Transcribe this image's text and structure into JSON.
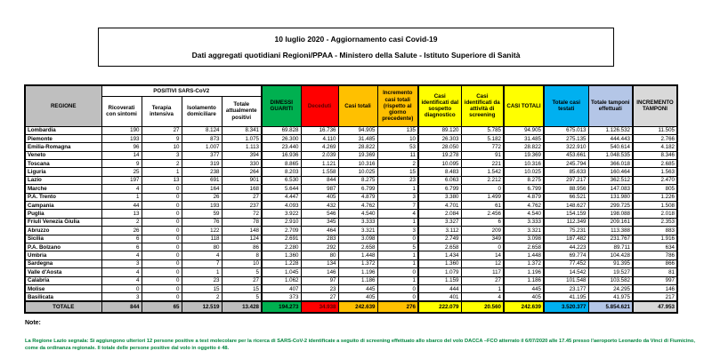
{
  "header": {
    "line1": "10 luglio 2020 - Aggiornamento casi Covid-19",
    "line2": "Dati aggregati quotidiani Regioni/PPAA - Ministero della Salute - Istituto Superiore di Sanità"
  },
  "table": {
    "region_header": "REGIONE",
    "positivi_group": "POSITIVI SARS-CoV2",
    "columns": [
      "Ricoverati con sintomi",
      "Terapia intensiva",
      "Isolamento domiciliare",
      "Totale attualmente positivi",
      "DIMESSI GUARITI",
      "Deceduti",
      "Casi totali",
      "Incremento casi totali (rispetto al giorno precedente)",
      "Casi identificati dal sospetto diagnostico",
      "Casi identificati da attività di screening",
      "CASI TOTALI",
      "Totale casi testati",
      "Totale tamponi effettuati",
      "INCREMENTO TAMPONI"
    ],
    "rows": [
      {
        "region": "Lombardia",
        "values": [
          "190",
          "27",
          "8.124",
          "8.341",
          "69.828",
          "16.736",
          "94.905",
          "135",
          "89.120",
          "5.785",
          "94.905",
          "675.013",
          "1.126.532",
          "11.505"
        ]
      },
      {
        "region": "Piemonte",
        "values": [
          "193",
          "9",
          "873",
          "1.075",
          "26.300",
          "4.110",
          "31.485",
          "10",
          "26.303",
          "5.182",
          "31.485",
          "275.135",
          "444.443",
          "2.766"
        ]
      },
      {
        "region": "Emilia-Romagna",
        "values": [
          "96",
          "10",
          "1.007",
          "1.113",
          "23.440",
          "4.269",
          "28.822",
          "53",
          "28.050",
          "772",
          "28.822",
          "322.910",
          "540.614",
          "4.182"
        ]
      },
      {
        "region": "Veneto",
        "values": [
          "14",
          "3",
          "377",
          "394",
          "16.936",
          "2.039",
          "19.369",
          "11",
          "19.278",
          "91",
          "19.369",
          "453.661",
          "1.048.535",
          "8.346"
        ]
      },
      {
        "region": "Toscana",
        "values": [
          "9",
          "2",
          "319",
          "330",
          "8.865",
          "1.121",
          "10.316",
          "2",
          "10.095",
          "221",
          "10.316",
          "245.794",
          "366.018",
          "2.685"
        ]
      },
      {
        "region": "Liguria",
        "values": [
          "25",
          "1",
          "238",
          "264",
          "8.203",
          "1.558",
          "10.025",
          "15",
          "8.483",
          "1.542",
          "10.025",
          "85.633",
          "160.464",
          "1.563"
        ]
      },
      {
        "region": "Lazio",
        "values": [
          "197",
          "13",
          "691",
          "901",
          "6.530",
          "844",
          "8.275",
          "23",
          "6.063",
          "2.212",
          "8.275",
          "297.217",
          "362.512",
          "2.470"
        ]
      },
      {
        "region": "Marche",
        "values": [
          "4",
          "0",
          "164",
          "168",
          "5.644",
          "987",
          "6.799",
          "1",
          "6.799",
          "0",
          "6.799",
          "88.956",
          "147.083",
          "805"
        ]
      },
      {
        "region": "P.A. Trento",
        "values": [
          "1",
          "0",
          "26",
          "27",
          "4.447",
          "405",
          "4.879",
          "3",
          "3.380",
          "1.499",
          "4.879",
          "66.521",
          "131.980",
          "1.226"
        ]
      },
      {
        "region": "Campania",
        "values": [
          "44",
          "0",
          "193",
          "237",
          "4.093",
          "432",
          "4.762",
          "7",
          "4.701",
          "61",
          "4.762",
          "148.627",
          "299.725",
          "1.508"
        ]
      },
      {
        "region": "Puglia",
        "values": [
          "13",
          "0",
          "59",
          "72",
          "3.922",
          "546",
          "4.540",
          "4",
          "2.084",
          "2.456",
          "4.540",
          "154.159",
          "198.088",
          "2.018"
        ]
      },
      {
        "region": "Friuli Venezia Giulia",
        "values": [
          "2",
          "0",
          "76",
          "78",
          "2.910",
          "345",
          "3.333",
          "1",
          "3.327",
          "6",
          "3.333",
          "112.349",
          "209.161",
          "2.353"
        ]
      },
      {
        "region": "Abruzzo",
        "values": [
          "26",
          "0",
          "122",
          "148",
          "2.709",
          "464",
          "3.321",
          "3",
          "3.112",
          "209",
          "3.321",
          "75.231",
          "113.388",
          "883"
        ]
      },
      {
        "region": "Sicilia",
        "values": [
          "6",
          "0",
          "118",
          "124",
          "2.691",
          "283",
          "3.098",
          "0",
          "2.749",
          "349",
          "3.098",
          "187.482",
          "231.767",
          "1.916"
        ]
      },
      {
        "region": "P.A. Bolzano",
        "values": [
          "6",
          "0",
          "80",
          "86",
          "2.280",
          "292",
          "2.658",
          "5",
          "2.658",
          "0",
          "2.658",
          "44.223",
          "89.711",
          "634"
        ]
      },
      {
        "region": "Umbria",
        "values": [
          "4",
          "0",
          "4",
          "8",
          "1.360",
          "80",
          "1.448",
          "1",
          "1.434",
          "14",
          "1.448",
          "69.774",
          "104.428",
          "786"
        ]
      },
      {
        "region": "Sardegna",
        "values": [
          "3",
          "0",
          "7",
          "10",
          "1.228",
          "134",
          "1.372",
          "1",
          "1.360",
          "12",
          "1.372",
          "77.452",
          "91.395",
          "866"
        ]
      },
      {
        "region": "Valle d'Aosta",
        "values": [
          "4",
          "0",
          "1",
          "5",
          "1.045",
          "146",
          "1.196",
          "0",
          "1.079",
          "117",
          "1.196",
          "14.542",
          "19.527",
          "81"
        ]
      },
      {
        "region": "Calabria",
        "values": [
          "4",
          "0",
          "23",
          "27",
          "1.062",
          "97",
          "1.186",
          "1",
          "1.159",
          "27",
          "1.186",
          "101.548",
          "103.582",
          "997"
        ]
      },
      {
        "region": "Molise",
        "values": [
          "0",
          "0",
          "15",
          "15",
          "407",
          "23",
          "445",
          "0",
          "444",
          "1",
          "445",
          "23.177",
          "24.295",
          "146"
        ]
      },
      {
        "region": "Basilicata",
        "values": [
          "3",
          "0",
          "2",
          "5",
          "373",
          "27",
          "405",
          "0",
          "401",
          "4",
          "405",
          "41.195",
          "41.975",
          "217"
        ]
      }
    ],
    "total": {
      "label": "TOTALE",
      "values": [
        "844",
        "65",
        "12.519",
        "13.428",
        "194.273",
        "34.938",
        "242.639",
        "276",
        "222.079",
        "20.560",
        "242.639",
        "3.520.377",
        "5.854.621",
        "47.953"
      ]
    }
  },
  "notes": {
    "label": "Note:",
    "text": "La Regione Lazio segnala: Si aggiungono ulteriori 12 persone positive a test molecolare per la ricerca di SARS-CoV-2 identificate a seguito di screening effettuato allo sbarco del volo DACCA –FCO atterrato il 6/07/2020 alle 17.45 presso l'aeroporto Leonardo da Vinci di Fiumicino, come da ordinanza regionale. Il totale delle persone positive dal volo in oggetto è 48."
  },
  "colors": {
    "green": "#00b050",
    "red": "#ff0000",
    "orange": "#ffc000",
    "yellow": "#ffff00",
    "cyan": "#00b0f0",
    "periwinkle": "#b4c6e7",
    "gray": "#bfbfbf",
    "light_gray": "#d9d9d9",
    "note_green": "#00843d"
  }
}
